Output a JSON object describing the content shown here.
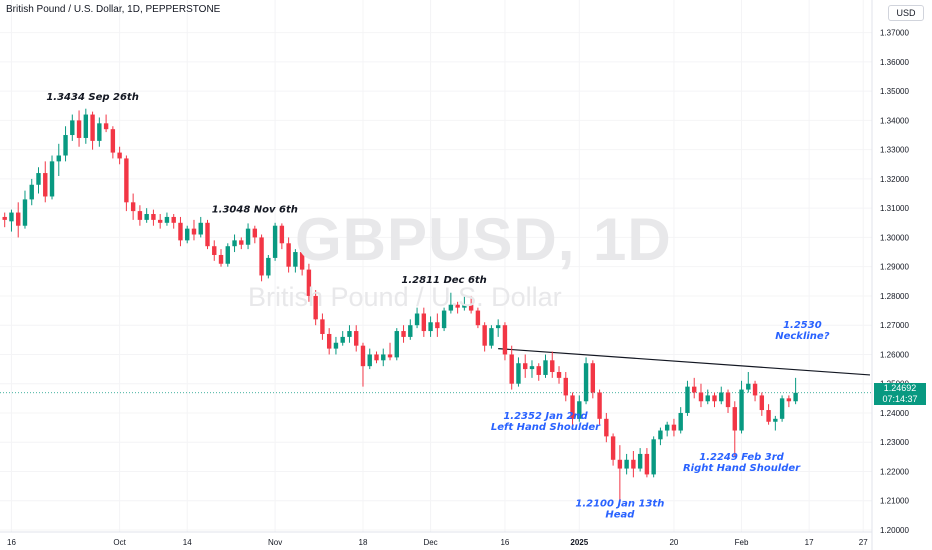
{
  "header": {
    "title": "British Pound / U.S. Dollar, 1D, PEPPERSTONE",
    "currency": "USD"
  },
  "watermark": {
    "symbol": "GBPUSD, 1D",
    "name": "British Pound / U.S. Dollar"
  },
  "price_tag": {
    "price": "1.24692",
    "countdown": "07:14:37"
  },
  "colors": {
    "up": "#089981",
    "down": "#f23645",
    "annotation_blue": "#2962ff",
    "annotation_dark": "#131722"
  },
  "chart_data": {
    "type": "candlestick",
    "ylim": [
      1.2,
      1.375
    ],
    "y_ticks": [
      "1.20000",
      "1.21000",
      "1.22000",
      "1.23000",
      "1.24000",
      "1.25000",
      "1.26000",
      "1.27000",
      "1.28000",
      "1.29000",
      "1.30000",
      "1.31000",
      "1.32000",
      "1.33000",
      "1.34000",
      "1.35000",
      "1.36000",
      "1.37000"
    ],
    "x_ticks": [
      {
        "label": "16",
        "index": 1
      },
      {
        "label": "Oct",
        "index": 17
      },
      {
        "label": "14",
        "index": 27
      },
      {
        "label": "Nov",
        "index": 40
      },
      {
        "label": "18",
        "index": 53
      },
      {
        "label": "Dec",
        "index": 63
      },
      {
        "label": "16",
        "index": 74
      },
      {
        "label": "2025",
        "index": 85
      },
      {
        "label": "20",
        "index": 99
      },
      {
        "label": "Feb",
        "index": 109
      },
      {
        "label": "17",
        "index": 119
      },
      {
        "label": "27",
        "index": 127
      }
    ],
    "candles": [
      {
        "o": 1.307,
        "h": 1.3085,
        "l": 1.3035,
        "c": 1.306
      },
      {
        "o": 1.3055,
        "h": 1.3095,
        "l": 1.302,
        "c": 1.3085
      },
      {
        "o": 1.3085,
        "h": 1.312,
        "l": 1.3,
        "c": 1.304
      },
      {
        "o": 1.304,
        "h": 1.316,
        "l": 1.303,
        "c": 1.313
      },
      {
        "o": 1.313,
        "h": 1.32,
        "l": 1.311,
        "c": 1.318
      },
      {
        "o": 1.318,
        "h": 1.324,
        "l": 1.315,
        "c": 1.322
      },
      {
        "o": 1.322,
        "h": 1.326,
        "l": 1.312,
        "c": 1.314
      },
      {
        "o": 1.314,
        "h": 1.328,
        "l": 1.313,
        "c": 1.326
      },
      {
        "o": 1.326,
        "h": 1.332,
        "l": 1.321,
        "c": 1.328
      },
      {
        "o": 1.328,
        "h": 1.338,
        "l": 1.326,
        "c": 1.335
      },
      {
        "o": 1.335,
        "h": 1.342,
        "l": 1.333,
        "c": 1.34
      },
      {
        "o": 1.34,
        "h": 1.3434,
        "l": 1.331,
        "c": 1.334
      },
      {
        "o": 1.334,
        "h": 1.344,
        "l": 1.332,
        "c": 1.342
      },
      {
        "o": 1.342,
        "h": 1.343,
        "l": 1.33,
        "c": 1.333
      },
      {
        "o": 1.333,
        "h": 1.341,
        "l": 1.331,
        "c": 1.339
      },
      {
        "o": 1.339,
        "h": 1.342,
        "l": 1.336,
        "c": 1.337
      },
      {
        "o": 1.337,
        "h": 1.338,
        "l": 1.327,
        "c": 1.329
      },
      {
        "o": 1.329,
        "h": 1.331,
        "l": 1.325,
        "c": 1.327
      },
      {
        "o": 1.327,
        "h": 1.328,
        "l": 1.309,
        "c": 1.312
      },
      {
        "o": 1.312,
        "h": 1.315,
        "l": 1.306,
        "c": 1.309
      },
      {
        "o": 1.309,
        "h": 1.311,
        "l": 1.304,
        "c": 1.306
      },
      {
        "o": 1.306,
        "h": 1.31,
        "l": 1.305,
        "c": 1.308
      },
      {
        "o": 1.308,
        "h": 1.3095,
        "l": 1.304,
        "c": 1.306
      },
      {
        "o": 1.306,
        "h": 1.308,
        "l": 1.303,
        "c": 1.305
      },
      {
        "o": 1.305,
        "h": 1.3085,
        "l": 1.304,
        "c": 1.307
      },
      {
        "o": 1.307,
        "h": 1.308,
        "l": 1.303,
        "c": 1.305
      },
      {
        "o": 1.305,
        "h": 1.307,
        "l": 1.297,
        "c": 1.299
      },
      {
        "o": 1.299,
        "h": 1.304,
        "l": 1.298,
        "c": 1.303
      },
      {
        "o": 1.303,
        "h": 1.306,
        "l": 1.299,
        "c": 1.301
      },
      {
        "o": 1.301,
        "h": 1.307,
        "l": 1.3,
        "c": 1.305
      },
      {
        "o": 1.305,
        "h": 1.306,
        "l": 1.296,
        "c": 1.297
      },
      {
        "o": 1.297,
        "h": 1.299,
        "l": 1.292,
        "c": 1.294
      },
      {
        "o": 1.294,
        "h": 1.296,
        "l": 1.29,
        "c": 1.291
      },
      {
        "o": 1.291,
        "h": 1.298,
        "l": 1.29,
        "c": 1.297
      },
      {
        "o": 1.297,
        "h": 1.301,
        "l": 1.295,
        "c": 1.299
      },
      {
        "o": 1.299,
        "h": 1.3,
        "l": 1.296,
        "c": 1.2975
      },
      {
        "o": 1.2975,
        "h": 1.3048,
        "l": 1.296,
        "c": 1.303
      },
      {
        "o": 1.303,
        "h": 1.304,
        "l": 1.298,
        "c": 1.3
      },
      {
        "o": 1.3,
        "h": 1.301,
        "l": 1.285,
        "c": 1.287
      },
      {
        "o": 1.287,
        "h": 1.294,
        "l": 1.286,
        "c": 1.293
      },
      {
        "o": 1.293,
        "h": 1.305,
        "l": 1.292,
        "c": 1.304
      },
      {
        "o": 1.304,
        "h": 1.3048,
        "l": 1.296,
        "c": 1.298
      },
      {
        "o": 1.298,
        "h": 1.3,
        "l": 1.288,
        "c": 1.29
      },
      {
        "o": 1.29,
        "h": 1.296,
        "l": 1.288,
        "c": 1.295
      },
      {
        "o": 1.295,
        "h": 1.296,
        "l": 1.287,
        "c": 1.289
      },
      {
        "o": 1.289,
        "h": 1.291,
        "l": 1.278,
        "c": 1.28
      },
      {
        "o": 1.28,
        "h": 1.282,
        "l": 1.27,
        "c": 1.272
      },
      {
        "o": 1.272,
        "h": 1.274,
        "l": 1.265,
        "c": 1.267
      },
      {
        "o": 1.267,
        "h": 1.269,
        "l": 1.26,
        "c": 1.262
      },
      {
        "o": 1.262,
        "h": 1.266,
        "l": 1.26,
        "c": 1.264
      },
      {
        "o": 1.264,
        "h": 1.268,
        "l": 1.263,
        "c": 1.266
      },
      {
        "o": 1.266,
        "h": 1.27,
        "l": 1.264,
        "c": 1.268
      },
      {
        "o": 1.268,
        "h": 1.27,
        "l": 1.261,
        "c": 1.263
      },
      {
        "o": 1.263,
        "h": 1.264,
        "l": 1.249,
        "c": 1.256
      },
      {
        "o": 1.256,
        "h": 1.262,
        "l": 1.255,
        "c": 1.26
      },
      {
        "o": 1.26,
        "h": 1.261,
        "l": 1.257,
        "c": 1.258
      },
      {
        "o": 1.258,
        "h": 1.262,
        "l": 1.256,
        "c": 1.26
      },
      {
        "o": 1.26,
        "h": 1.264,
        "l": 1.258,
        "c": 1.259
      },
      {
        "o": 1.259,
        "h": 1.269,
        "l": 1.258,
        "c": 1.268
      },
      {
        "o": 1.268,
        "h": 1.27,
        "l": 1.264,
        "c": 1.266
      },
      {
        "o": 1.266,
        "h": 1.272,
        "l": 1.265,
        "c": 1.27
      },
      {
        "o": 1.27,
        "h": 1.276,
        "l": 1.269,
        "c": 1.274
      },
      {
        "o": 1.274,
        "h": 1.276,
        "l": 1.266,
        "c": 1.268
      },
      {
        "o": 1.268,
        "h": 1.273,
        "l": 1.266,
        "c": 1.271
      },
      {
        "o": 1.271,
        "h": 1.274,
        "l": 1.266,
        "c": 1.269
      },
      {
        "o": 1.269,
        "h": 1.276,
        "l": 1.268,
        "c": 1.275
      },
      {
        "o": 1.275,
        "h": 1.2811,
        "l": 1.274,
        "c": 1.277
      },
      {
        "o": 1.277,
        "h": 1.278,
        "l": 1.274,
        "c": 1.276
      },
      {
        "o": 1.276,
        "h": 1.28,
        "l": 1.275,
        "c": 1.277
      },
      {
        "o": 1.277,
        "h": 1.28,
        "l": 1.274,
        "c": 1.275
      },
      {
        "o": 1.275,
        "h": 1.276,
        "l": 1.269,
        "c": 1.27
      },
      {
        "o": 1.27,
        "h": 1.271,
        "l": 1.261,
        "c": 1.263
      },
      {
        "o": 1.263,
        "h": 1.27,
        "l": 1.262,
        "c": 1.269
      },
      {
        "o": 1.269,
        "h": 1.272,
        "l": 1.266,
        "c": 1.27
      },
      {
        "o": 1.27,
        "h": 1.271,
        "l": 1.258,
        "c": 1.26
      },
      {
        "o": 1.26,
        "h": 1.263,
        "l": 1.248,
        "c": 1.25
      },
      {
        "o": 1.25,
        "h": 1.259,
        "l": 1.249,
        "c": 1.257
      },
      {
        "o": 1.257,
        "h": 1.26,
        "l": 1.252,
        "c": 1.255
      },
      {
        "o": 1.255,
        "h": 1.258,
        "l": 1.252,
        "c": 1.256
      },
      {
        "o": 1.256,
        "h": 1.257,
        "l": 1.251,
        "c": 1.253
      },
      {
        "o": 1.253,
        "h": 1.26,
        "l": 1.252,
        "c": 1.258
      },
      {
        "o": 1.258,
        "h": 1.261,
        "l": 1.252,
        "c": 1.254
      },
      {
        "o": 1.254,
        "h": 1.256,
        "l": 1.25,
        "c": 1.252
      },
      {
        "o": 1.252,
        "h": 1.254,
        "l": 1.244,
        "c": 1.246
      },
      {
        "o": 1.246,
        "h": 1.247,
        "l": 1.2352,
        "c": 1.238
      },
      {
        "o": 1.238,
        "h": 1.246,
        "l": 1.237,
        "c": 1.244
      },
      {
        "o": 1.244,
        "h": 1.259,
        "l": 1.243,
        "c": 1.257
      },
      {
        "o": 1.257,
        "h": 1.258,
        "l": 1.245,
        "c": 1.247
      },
      {
        "o": 1.247,
        "h": 1.248,
        "l": 1.236,
        "c": 1.238
      },
      {
        "o": 1.238,
        "h": 1.24,
        "l": 1.23,
        "c": 1.232
      },
      {
        "o": 1.232,
        "h": 1.233,
        "l": 1.222,
        "c": 1.224
      },
      {
        "o": 1.224,
        "h": 1.229,
        "l": 1.21,
        "c": 1.221
      },
      {
        "o": 1.221,
        "h": 1.226,
        "l": 1.219,
        "c": 1.224
      },
      {
        "o": 1.224,
        "h": 1.227,
        "l": 1.218,
        "c": 1.221
      },
      {
        "o": 1.221,
        "h": 1.228,
        "l": 1.22,
        "c": 1.226
      },
      {
        "o": 1.226,
        "h": 1.228,
        "l": 1.218,
        "c": 1.219
      },
      {
        "o": 1.219,
        "h": 1.232,
        "l": 1.218,
        "c": 1.231
      },
      {
        "o": 1.231,
        "h": 1.235,
        "l": 1.229,
        "c": 1.234
      },
      {
        "o": 1.234,
        "h": 1.237,
        "l": 1.232,
        "c": 1.236
      },
      {
        "o": 1.236,
        "h": 1.238,
        "l": 1.232,
        "c": 1.234
      },
      {
        "o": 1.234,
        "h": 1.242,
        "l": 1.233,
        "c": 1.24
      },
      {
        "o": 1.24,
        "h": 1.251,
        "l": 1.239,
        "c": 1.249
      },
      {
        "o": 1.249,
        "h": 1.252,
        "l": 1.245,
        "c": 1.247
      },
      {
        "o": 1.247,
        "h": 1.25,
        "l": 1.242,
        "c": 1.244
      },
      {
        "o": 1.244,
        "h": 1.248,
        "l": 1.243,
        "c": 1.246
      },
      {
        "o": 1.246,
        "h": 1.247,
        "l": 1.242,
        "c": 1.244
      },
      {
        "o": 1.244,
        "h": 1.249,
        "l": 1.243,
        "c": 1.247
      },
      {
        "o": 1.247,
        "h": 1.248,
        "l": 1.24,
        "c": 1.242
      },
      {
        "o": 1.242,
        "h": 1.244,
        "l": 1.2249,
        "c": 1.234
      },
      {
        "o": 1.234,
        "h": 1.251,
        "l": 1.233,
        "c": 1.248
      },
      {
        "o": 1.248,
        "h": 1.254,
        "l": 1.247,
        "c": 1.25
      },
      {
        "o": 1.25,
        "h": 1.251,
        "l": 1.244,
        "c": 1.246
      },
      {
        "o": 1.246,
        "h": 1.247,
        "l": 1.239,
        "c": 1.241
      },
      {
        "o": 1.241,
        "h": 1.243,
        "l": 1.236,
        "c": 1.237
      },
      {
        "o": 1.237,
        "h": 1.239,
        "l": 1.234,
        "c": 1.238
      },
      {
        "o": 1.238,
        "h": 1.246,
        "l": 1.237,
        "c": 1.245
      },
      {
        "o": 1.245,
        "h": 1.246,
        "l": 1.242,
        "c": 1.244
      },
      {
        "o": 1.244,
        "h": 1.252,
        "l": 1.243,
        "c": 1.2469
      }
    ],
    "neckline": {
      "from": {
        "index": 73,
        "price": 1.262
      },
      "to": {
        "index": 128,
        "price": 1.253
      }
    },
    "last_price": 1.24692,
    "annotations": [
      {
        "lines": [
          "1.3434 Sep 26th"
        ],
        "index": 13,
        "price": 1.347,
        "color": "dark"
      },
      {
        "lines": [
          "1.3048 Nov 6th"
        ],
        "index": 37,
        "price": 1.3085,
        "color": "dark"
      },
      {
        "lines": [
          "1.2811 Dec 6th"
        ],
        "index": 65,
        "price": 1.2845,
        "color": "dark"
      },
      {
        "lines": [
          "1.2530",
          "Neckline?"
        ],
        "index": 118,
        "price": 1.269,
        "color": "blue"
      },
      {
        "lines": [
          "1.2352 Jan 2nd",
          "Left Hand Shoulder"
        ],
        "index": 80,
        "price": 1.238,
        "color": "blue"
      },
      {
        "lines": [
          "1.2249 Feb 3rd",
          "Right Hand Shoulder"
        ],
        "index": 109,
        "price": 1.224,
        "color": "blue"
      },
      {
        "lines": [
          "1.2100 Jan 13th",
          "Head"
        ],
        "index": 91,
        "price": 1.208,
        "color": "blue"
      }
    ]
  }
}
